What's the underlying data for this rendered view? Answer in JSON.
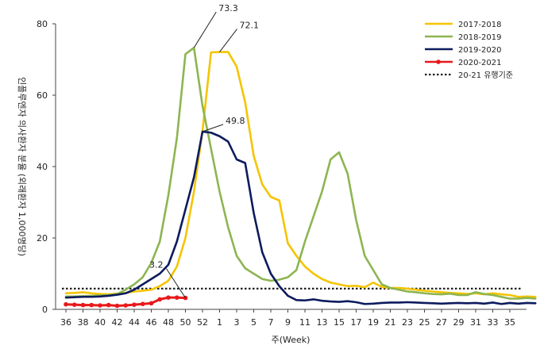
{
  "chart_data": {
    "type": "line",
    "title": "",
    "xlabel": "주(Week)",
    "ylabel": "인플루엔자 의사환자 분율 (외래환자 1,000명당)",
    "ylim": [
      0,
      80
    ],
    "yticks": [
      "0",
      "20",
      "40",
      "60",
      "80"
    ],
    "xticks": [
      "36",
      "38",
      "40",
      "42",
      "44",
      "46",
      "48",
      "50",
      "52",
      "1",
      "3",
      "5",
      "7",
      "9",
      "11",
      "13",
      "15",
      "17",
      "19",
      "21",
      "23",
      "25",
      "27",
      "29",
      "31",
      "33",
      "35"
    ],
    "grid": false,
    "legend": "top-right",
    "threshold": {
      "name": "20-21 유행기준",
      "value": 5.8,
      "color": "#222222"
    },
    "series": [
      {
        "name": "2017-2018",
        "color": "#F5C400",
        "marker": false,
        "values": [
          4.5,
          4.6,
          4.8,
          4.5,
          4.3,
          4.2,
          4.4,
          4.6,
          5.0,
          5.2,
          5.5,
          6.5,
          8.0,
          12.0,
          20.0,
          33.0,
          50.0,
          72.0,
          72.1,
          72.1,
          68.0,
          58.0,
          43.0,
          35.0,
          31.5,
          30.5,
          18.5,
          15.0,
          12.0,
          10.0,
          8.5,
          7.5,
          7.0,
          6.5,
          6.6,
          6.2,
          7.5,
          6.3,
          6.0,
          6.0,
          5.8,
          5.5,
          5.2,
          5.0,
          4.8,
          4.6,
          4.5,
          4.3,
          4.5,
          4.2,
          4.5,
          4.2,
          4.0,
          3.5,
          3.6,
          3.5
        ]
      },
      {
        "name": "2018-2019",
        "color": "#8DB551",
        "marker": false,
        "values": [
          3.6,
          3.6,
          3.7,
          3.8,
          3.9,
          4.0,
          4.3,
          5.5,
          7.0,
          9.0,
          13.0,
          19.0,
          32.0,
          48.0,
          71.5,
          73.3,
          57.0,
          45.0,
          33.0,
          23.0,
          15.0,
          11.5,
          10.0,
          8.5,
          8.0,
          8.3,
          9.0,
          11.0,
          19.0,
          26.0,
          33.0,
          42.0,
          44.0,
          38.0,
          25.0,
          15.0,
          11.0,
          7.0,
          6.0,
          5.5,
          5.0,
          4.8,
          4.5,
          4.3,
          4.2,
          4.4,
          4.0,
          4.0,
          4.8,
          4.3,
          4.0,
          3.5,
          3.0,
          3.0,
          3.2,
          3.0
        ]
      },
      {
        "name": "2019-2020",
        "color": "#0D1B5E",
        "marker": false,
        "values": [
          3.3,
          3.4,
          3.5,
          3.5,
          3.6,
          3.8,
          4.1,
          4.5,
          5.5,
          7.0,
          8.5,
          10.0,
          12.5,
          19.0,
          28.0,
          37.0,
          49.8,
          49.5,
          48.5,
          47.0,
          42.0,
          41.0,
          27.0,
          16.0,
          10.0,
          6.5,
          3.8,
          2.6,
          2.5,
          2.8,
          2.4,
          2.2,
          2.1,
          2.3,
          2.0,
          1.5,
          1.6,
          1.8,
          1.9,
          1.9,
          2.0,
          1.9,
          1.8,
          1.7,
          1.6,
          1.7,
          1.8,
          1.7,
          1.8,
          1.6,
          1.9,
          1.5,
          1.8,
          1.6,
          1.8,
          1.7
        ]
      },
      {
        "name": "2020-2021",
        "color": "#E8191B",
        "marker": true,
        "values": [
          1.4,
          1.3,
          1.2,
          1.2,
          1.1,
          1.2,
          1.0,
          1.1,
          1.3,
          1.5,
          1.7,
          2.8,
          3.3,
          3.3,
          3.2
        ]
      }
    ],
    "annotations": [
      {
        "text": "73.3",
        "week_index": 15,
        "value": 73.3
      },
      {
        "text": "72.1",
        "week_index": 18,
        "value": 72.1
      },
      {
        "text": "49.8",
        "week_index": 16,
        "value": 49.8
      },
      {
        "text": "3.2",
        "week_index": 14,
        "value": 3.2
      }
    ]
  }
}
